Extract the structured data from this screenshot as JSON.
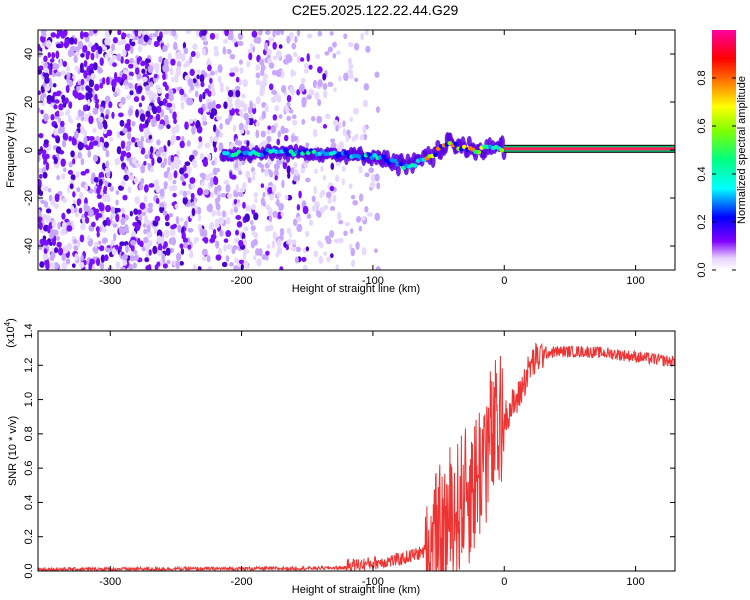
{
  "page": {
    "title": "C2E5.2025.122.22.44.G29"
  },
  "chart_data": [
    {
      "type": "heatmap",
      "title": "C2E5.2025.122.22.44.G29",
      "xlabel": "Height of straight line (km)",
      "ylabel": "Frequency (Hz)",
      "xlim": [
        -355,
        130
      ],
      "ylim": [
        -50,
        50
      ],
      "xticks": [
        -300,
        -200,
        -100,
        0,
        100
      ],
      "yticks": [
        -40,
        -20,
        0,
        20,
        40
      ],
      "colorbar": {
        "label": "Normalized spectral amplitude",
        "range": [
          0.0,
          1.0
        ],
        "ticks": [
          0.0,
          0.2,
          0.4,
          0.6,
          0.8
        ],
        "colormap": [
          "#ffffff",
          "#7a00ff",
          "#0000ff",
          "#00ffff",
          "#00ff00",
          "#ffff00",
          "#ff8000",
          "#ff0000",
          "#ff00ff"
        ]
      },
      "noise_region_x": [
        -355,
        -95
      ],
      "ridge": {
        "x": [
          -215,
          -180,
          -150,
          -120,
          -95,
          -85,
          -75,
          -65,
          -55,
          -45,
          -40,
          -30,
          -20,
          -10,
          0,
          130
        ],
        "y": [
          -2,
          -1,
          -1,
          -2,
          -3,
          -5,
          -7,
          -5,
          -3,
          3,
          2,
          1,
          0,
          1,
          0.5,
          0.5
        ]
      }
    },
    {
      "type": "line",
      "xlabel": "Height of straight line (km)",
      "ylabel": "SNR (10 * v/v)",
      "y_multiplier_label": "(x10",
      "y_multiplier_exp": "4",
      "xlim": [
        -355,
        130
      ],
      "ylim": [
        0,
        1.4
      ],
      "xticks": [
        -300,
        -200,
        -100,
        0,
        100
      ],
      "yticks": [
        0.0,
        0.2,
        0.4,
        0.6,
        0.8,
        1.0,
        1.2,
        1.4
      ],
      "color": "#ee3333",
      "series": [
        {
          "x": [
            -355,
            -160,
            -110,
            -80,
            -60,
            -50,
            -40,
            -30,
            -25,
            -20,
            -15,
            -10,
            -5,
            0,
            5,
            10,
            15,
            20,
            25,
            30,
            40,
            60,
            80,
            100,
            130
          ],
          "y": [
            0.01,
            0.015,
            0.02,
            0.05,
            0.1,
            0.2,
            0.35,
            0.5,
            0.55,
            0.6,
            0.75,
            0.8,
            0.85,
            0.9,
            0.95,
            1.0,
            1.1,
            1.2,
            1.24,
            1.27,
            1.28,
            1.28,
            1.27,
            1.25,
            1.22
          ]
        }
      ]
    }
  ]
}
